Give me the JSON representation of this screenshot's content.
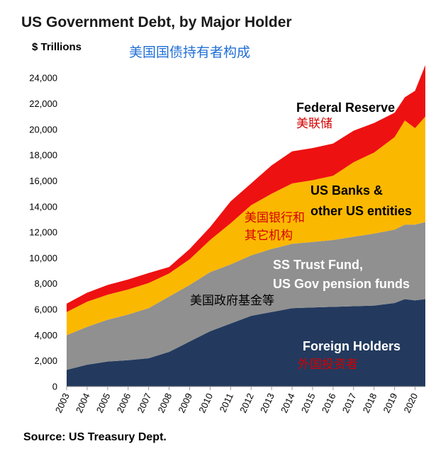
{
  "chart_data": {
    "type": "area",
    "stacked": true,
    "title": "US Government Debt, by Major Holder",
    "subtitle_cn": "美国国债持有者构成",
    "ylabel": "$ Trillions",
    "ylim": [
      0,
      25000
    ],
    "yticks": [
      0,
      2000,
      4000,
      6000,
      8000,
      10000,
      12000,
      14000,
      16000,
      18000,
      20000,
      22000,
      24000
    ],
    "ytick_labels": [
      "0",
      "2,000",
      "4,000",
      "6,000",
      "8,000",
      "10,000",
      "12,000",
      "14,000",
      "16,000",
      "18,000",
      "20,000",
      "22,000",
      "24,000"
    ],
    "xlim": [
      2003,
      2020.5
    ],
    "xticks": [
      "2003",
      "2004",
      "2005",
      "2006",
      "2007",
      "2008",
      "2009",
      "2010",
      "2011",
      "2012",
      "2013",
      "2014",
      "2015",
      "2016",
      "2017",
      "2018",
      "2019",
      "2020"
    ],
    "x": [
      2003,
      2004,
      2005,
      2006,
      2007,
      2008,
      2009,
      2010,
      2011,
      2012,
      2013,
      2014,
      2015,
      2016,
      2017,
      2018,
      2019,
      2019.5,
      2020,
      2020.5
    ],
    "series": [
      {
        "name": "Foreign Holders",
        "label_cn": "外国投资者",
        "color": "#233a5e",
        "values": [
          1300,
          1700,
          1950,
          2050,
          2200,
          2700,
          3500,
          4300,
          4900,
          5500,
          5800,
          6100,
          6150,
          6200,
          6250,
          6300,
          6500,
          6800,
          6700,
          6800
        ]
      },
      {
        "name": "SS Trust Fund, US Gov pension funds",
        "label_cn": "美国政府基金等",
        "color": "#909090",
        "values": [
          2700,
          2950,
          3250,
          3550,
          3900,
          4300,
          4400,
          4600,
          4600,
          4700,
          4900,
          5000,
          5100,
          5200,
          5400,
          5600,
          5700,
          5800,
          5900,
          6000
        ]
      },
      {
        "name": "US Banks & other US entities",
        "label_cn": "美国银行和其它机构",
        "color": "#fbb800",
        "values": [
          1800,
          1950,
          1950,
          1950,
          1950,
          1800,
          2000,
          2500,
          3200,
          3900,
          4300,
          4700,
          4800,
          5000,
          5800,
          6300,
          7200,
          8100,
          7500,
          8200
        ]
      },
      {
        "name": "Federal Reserve",
        "label_cn": "美联储",
        "color": "#ee1111",
        "values": [
          650,
          700,
          750,
          780,
          780,
          500,
          800,
          1000,
          1700,
          1700,
          2200,
          2500,
          2500,
          2500,
          2450,
          2300,
          1900,
          1800,
          2900,
          4000
        ]
      }
    ],
    "source": "Source: US Treasury Dept."
  },
  "annotations": {
    "fed_en": "Federal Reserve",
    "fed_cn": "美联储",
    "banks_en_1": "US Banks &",
    "banks_en_2": "other US entities",
    "banks_cn_1": "美国银行和",
    "banks_cn_2": "其它机构",
    "ss_en_1": "SS Trust Fund,",
    "ss_en_2": "US Gov pension funds",
    "ss_cn": "美国政府基金等",
    "foreign_en": "Foreign Holders",
    "foreign_cn": "外国投资者"
  },
  "colors": {
    "title_cn": "#1f6fd6",
    "label_cn_red": "#d40000",
    "label_cn_black": "#000000",
    "label_en_dark": "#000000",
    "label_en_light": "#ffffff"
  }
}
